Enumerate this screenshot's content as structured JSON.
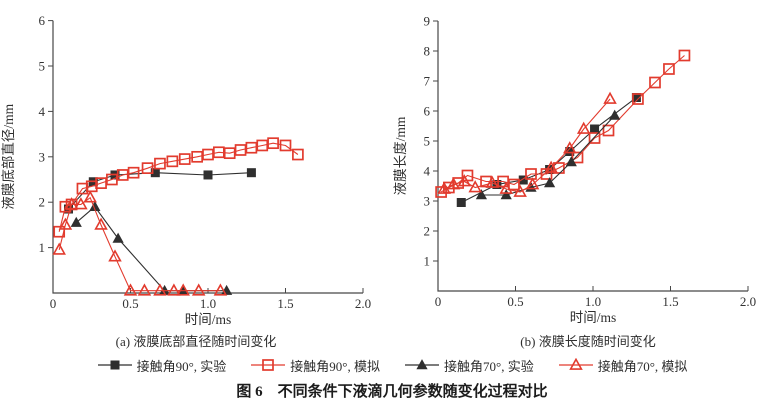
{
  "figure": {
    "caption": "图 6　不同条件下液滴几何参数随变化过程对比"
  },
  "legend": {
    "items": [
      {
        "label": "接触角90°, 实验",
        "marker": "filled-square",
        "color": "#2f2f2f"
      },
      {
        "label": "接触角90°, 模拟",
        "marker": "open-square",
        "color": "#e23b2e"
      },
      {
        "label": "接触角70°, 实验",
        "marker": "filled-triangle",
        "color": "#2f2f2f"
      },
      {
        "label": "接触角70°, 模拟",
        "marker": "open-triangle",
        "color": "#e23b2e"
      }
    ]
  },
  "chart_data": [
    {
      "type": "line",
      "subtitle": "(a) 液膜底部直径随时间变化",
      "xlabel": "时间/ms",
      "ylabel": "液膜底部直径/mm",
      "xlim": [
        0,
        2.0
      ],
      "ylim": [
        0,
        6
      ],
      "grid": false,
      "legend_position": "below-figure",
      "xtick_values": [
        0,
        0.5,
        1.0,
        1.5,
        2.0
      ],
      "xtick_labels": [
        "0",
        "0.5",
        "1.0",
        "1.5",
        "2.0"
      ],
      "ytick_values": [
        1,
        2,
        3,
        4,
        5,
        6
      ],
      "ytick_labels": [
        "1",
        "2",
        "3",
        "4",
        "5",
        "6"
      ],
      "series": [
        {
          "name": "接触角90°, 实验",
          "marker": "filled-square",
          "color": "#2f2f2f",
          "points": [
            [
              0.1,
              1.85
            ],
            [
              0.26,
              2.45
            ],
            [
              0.4,
              2.6
            ],
            [
              0.66,
              2.65
            ],
            [
              1.0,
              2.6
            ],
            [
              1.28,
              2.65
            ]
          ]
        },
        {
          "name": "接触角90°, 模拟",
          "marker": "open-square",
          "color": "#e23b2e",
          "points": [
            [
              0.04,
              1.35
            ],
            [
              0.08,
              1.9
            ],
            [
              0.12,
              1.95
            ],
            [
              0.19,
              2.3
            ],
            [
              0.25,
              2.35
            ],
            [
              0.31,
              2.42
            ],
            [
              0.38,
              2.5
            ],
            [
              0.45,
              2.6
            ],
            [
              0.52,
              2.65
            ],
            [
              0.61,
              2.75
            ],
            [
              0.69,
              2.85
            ],
            [
              0.77,
              2.9
            ],
            [
              0.85,
              2.95
            ],
            [
              0.93,
              3.0
            ],
            [
              1.0,
              3.05
            ],
            [
              1.07,
              3.1
            ],
            [
              1.14,
              3.08
            ],
            [
              1.21,
              3.15
            ],
            [
              1.28,
              3.2
            ],
            [
              1.35,
              3.25
            ],
            [
              1.42,
              3.3
            ],
            [
              1.5,
              3.25
            ],
            [
              1.58,
              3.05
            ]
          ]
        },
        {
          "name": "接触角70°, 实验",
          "marker": "filled-triangle",
          "color": "#2f2f2f",
          "points": [
            [
              0.15,
              1.55
            ],
            [
              0.27,
              1.9
            ],
            [
              0.42,
              1.2
            ],
            [
              0.72,
              0.05
            ],
            [
              0.84,
              0.05
            ],
            [
              1.12,
              0.05
            ]
          ]
        },
        {
          "name": "接触角70°, 模拟",
          "marker": "open-triangle",
          "color": "#e23b2e",
          "points": [
            [
              0.04,
              0.95
            ],
            [
              0.08,
              1.5
            ],
            [
              0.12,
              1.95
            ],
            [
              0.18,
              1.95
            ],
            [
              0.24,
              2.1
            ],
            [
              0.31,
              1.5
            ],
            [
              0.4,
              0.8
            ],
            [
              0.5,
              0.05
            ],
            [
              0.59,
              0.05
            ],
            [
              0.69,
              0.05
            ],
            [
              0.78,
              0.05
            ],
            [
              0.84,
              0.05
            ],
            [
              0.94,
              0.05
            ],
            [
              1.08,
              0.05
            ]
          ]
        }
      ]
    },
    {
      "type": "line",
      "subtitle": "(b) 液膜长度随时间变化",
      "xlabel": "时间/ms",
      "ylabel": "液膜长度/mm",
      "xlim": [
        0,
        2.0
      ],
      "ylim": [
        0,
        9
      ],
      "grid": false,
      "legend_position": "below-figure",
      "xtick_values": [
        0,
        0.5,
        1.0,
        1.5,
        2.0
      ],
      "xtick_labels": [
        "0",
        "0.5",
        "1.0",
        "1.5",
        "2.0"
      ],
      "ytick_values": [
        1,
        2,
        3,
        4,
        5,
        6,
        7,
        8,
        9
      ],
      "ytick_labels": [
        "1",
        "2",
        "3",
        "4",
        "5",
        "6",
        "7",
        "8",
        "9"
      ],
      "series": [
        {
          "name": "接触角90°, 实验",
          "marker": "filled-square",
          "color": "#2f2f2f",
          "points": [
            [
              0.15,
              2.95
            ],
            [
              0.38,
              3.55
            ],
            [
              0.55,
              3.7
            ],
            [
              0.72,
              4.05
            ],
            [
              0.85,
              4.65
            ],
            [
              1.01,
              5.4
            ],
            [
              1.28,
              6.45
            ]
          ]
        },
        {
          "name": "接触角90°, 模拟",
          "marker": "open-square",
          "color": "#e23b2e",
          "points": [
            [
              0.02,
              3.3
            ],
            [
              0.07,
              3.45
            ],
            [
              0.13,
              3.6
            ],
            [
              0.19,
              3.85
            ],
            [
              0.31,
              3.65
            ],
            [
              0.42,
              3.65
            ],
            [
              0.49,
              3.55
            ],
            [
              0.6,
              3.9
            ],
            [
              0.7,
              3.9
            ],
            [
              0.78,
              4.1
            ],
            [
              0.9,
              4.45
            ],
            [
              1.01,
              5.1
            ],
            [
              1.1,
              5.35
            ],
            [
              1.29,
              6.4
            ],
            [
              1.4,
              6.95
            ],
            [
              1.49,
              7.4
            ],
            [
              1.59,
              7.85
            ]
          ]
        },
        {
          "name": "接触角70°, 实验",
          "marker": "filled-triangle",
          "color": "#2f2f2f",
          "points": [
            [
              0.28,
              3.2
            ],
            [
              0.44,
              3.2
            ],
            [
              0.6,
              3.45
            ],
            [
              0.72,
              3.6
            ],
            [
              0.86,
              4.3
            ],
            [
              1.14,
              5.85
            ]
          ]
        },
        {
          "name": "接触角70°, 模拟",
          "marker": "open-triangle",
          "color": "#e23b2e",
          "points": [
            [
              0.04,
              3.4
            ],
            [
              0.1,
              3.55
            ],
            [
              0.17,
              3.65
            ],
            [
              0.24,
              3.45
            ],
            [
              0.35,
              3.6
            ],
            [
              0.44,
              3.4
            ],
            [
              0.53,
              3.3
            ],
            [
              0.61,
              3.55
            ],
            [
              0.73,
              4.1
            ],
            [
              0.85,
              4.75
            ],
            [
              0.94,
              5.4
            ],
            [
              1.11,
              6.4
            ]
          ]
        }
      ]
    }
  ]
}
